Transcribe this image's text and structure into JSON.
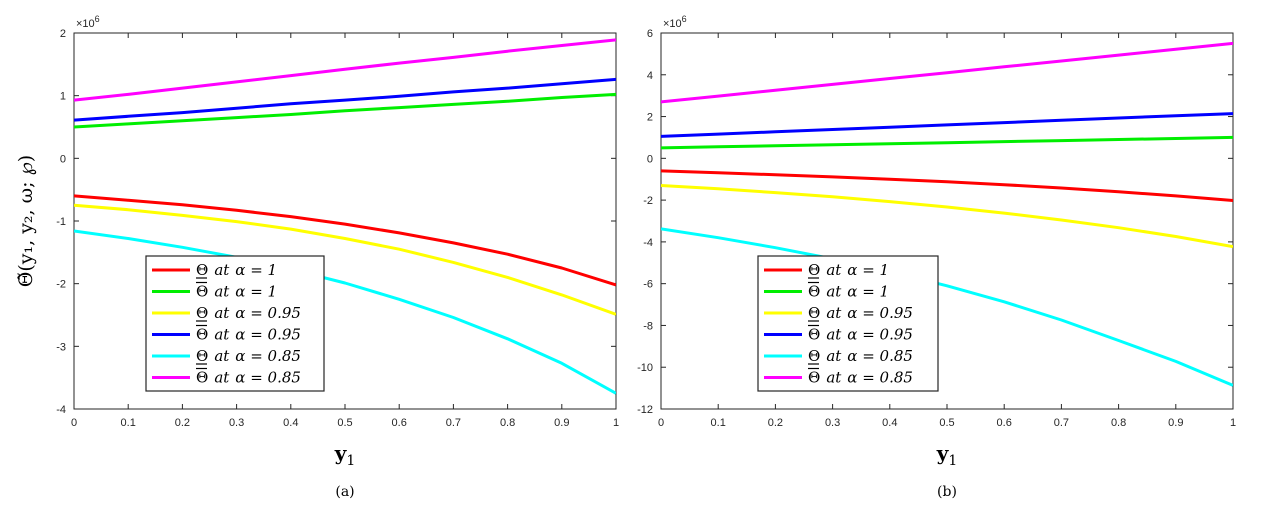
{
  "chart_data": [
    {
      "type": "line",
      "panel": "(a)",
      "exponent_base": "×10",
      "exponent_power": "6",
      "ylabel": "Θ̃(y₁, y₂, ω; ℘)",
      "xlabel": "y",
      "xlabel_sub": "1",
      "xlim": [
        0,
        1
      ],
      "ylim": [
        -4,
        2
      ],
      "xticks": [
        "0",
        "0.1",
        "0.2",
        "0.3",
        "0.4",
        "0.5",
        "0.6",
        "0.7",
        "0.8",
        "0.9",
        "1"
      ],
      "yticks": [
        "2",
        "1",
        "0",
        "-1",
        "-2",
        "-3",
        "-4"
      ],
      "grid": false,
      "legend_position": "lower-left",
      "x": [
        0,
        0.1,
        0.2,
        0.3,
        0.4,
        0.5,
        0.6,
        0.7,
        0.8,
        0.9,
        1.0
      ],
      "series": [
        {
          "color": "#ff0000",
          "values": [
            -0.6,
            -0.67,
            -0.74,
            -0.83,
            -0.93,
            -1.05,
            -1.19,
            -1.35,
            -1.53,
            -1.75,
            -2.02
          ]
        },
        {
          "color": "#00ee00",
          "values": [
            0.5,
            0.55,
            0.6,
            0.65,
            0.7,
            0.76,
            0.81,
            0.86,
            0.91,
            0.97,
            1.02
          ]
        },
        {
          "color": "#ffff00",
          "values": [
            -0.75,
            -0.82,
            -0.91,
            -1.01,
            -1.13,
            -1.28,
            -1.45,
            -1.66,
            -1.9,
            -2.18,
            -2.49
          ]
        },
        {
          "color": "#0000ff",
          "values": [
            0.61,
            0.67,
            0.73,
            0.8,
            0.87,
            0.93,
            0.99,
            1.06,
            1.12,
            1.19,
            1.26
          ]
        },
        {
          "color": "#00ffff",
          "values": [
            -1.16,
            -1.28,
            -1.42,
            -1.58,
            -1.77,
            -1.99,
            -2.25,
            -2.54,
            -2.88,
            -3.27,
            -3.75
          ]
        },
        {
          "color": "#ff00ff",
          "values": [
            0.93,
            1.02,
            1.12,
            1.22,
            1.32,
            1.42,
            1.52,
            1.61,
            1.71,
            1.8,
            1.89
          ]
        }
      ]
    },
    {
      "type": "line",
      "panel": "(b)",
      "exponent_base": "×10",
      "exponent_power": "6",
      "xlabel": "y",
      "xlabel_sub": "1",
      "xlim": [
        0,
        1
      ],
      "ylim": [
        -12,
        6
      ],
      "xticks": [
        "0",
        "0.1",
        "0.2",
        "0.3",
        "0.4",
        "0.5",
        "0.6",
        "0.7",
        "0.8",
        "0.9",
        "1"
      ],
      "yticks": [
        "6",
        "4",
        "2",
        "0",
        "-2",
        "-4",
        "-6",
        "-8",
        "-10",
        "-12"
      ],
      "grid": false,
      "legend_position": "lower-left",
      "x": [
        0,
        0.1,
        0.2,
        0.3,
        0.4,
        0.5,
        0.6,
        0.7,
        0.8,
        0.9,
        1.0
      ],
      "series": [
        {
          "color": "#ff0000",
          "values": [
            -0.6,
            -0.69,
            -0.79,
            -0.89,
            -1.0,
            -1.12,
            -1.26,
            -1.42,
            -1.6,
            -1.8,
            -2.02
          ]
        },
        {
          "color": "#00ee00",
          "values": [
            0.5,
            0.55,
            0.6,
            0.65,
            0.7,
            0.75,
            0.8,
            0.85,
            0.9,
            0.95,
            1.0
          ]
        },
        {
          "color": "#ffff00",
          "values": [
            -1.3,
            -1.46,
            -1.64,
            -1.84,
            -2.07,
            -2.33,
            -2.62,
            -2.95,
            -3.32,
            -3.74,
            -4.23
          ]
        },
        {
          "color": "#0000ff",
          "values": [
            1.05,
            1.16,
            1.27,
            1.38,
            1.49,
            1.6,
            1.71,
            1.82,
            1.93,
            2.04,
            2.14
          ]
        },
        {
          "color": "#00ffff",
          "values": [
            -3.38,
            -3.8,
            -4.28,
            -4.81,
            -5.42,
            -6.1,
            -6.87,
            -7.74,
            -8.72,
            -9.72,
            -10.87
          ]
        },
        {
          "color": "#ff00ff",
          "values": [
            2.7,
            2.98,
            3.26,
            3.54,
            3.82,
            4.1,
            4.38,
            4.66,
            4.94,
            5.22,
            5.5
          ]
        }
      ]
    }
  ],
  "legend": {
    "items": [
      {
        "color": "#ff0000",
        "bar": "under",
        "sym": "Θ",
        "at": "at",
        "alpha": "α = 1"
      },
      {
        "color": "#00ee00",
        "bar": "over",
        "sym": "Θ",
        "at": "at",
        "alpha": "α = 1"
      },
      {
        "color": "#ffff00",
        "bar": "under",
        "sym": "Θ",
        "at": "at",
        "alpha": "α = 0.95"
      },
      {
        "color": "#0000ff",
        "bar": "over",
        "sym": "Θ",
        "at": "at",
        "alpha": "α = 0.95"
      },
      {
        "color": "#00ffff",
        "bar": "under",
        "sym": "Θ",
        "at": "at",
        "alpha": "α = 0.85"
      },
      {
        "color": "#ff00ff",
        "bar": "over",
        "sym": "Θ",
        "at": "at",
        "alpha": "α = 0.85"
      }
    ]
  }
}
